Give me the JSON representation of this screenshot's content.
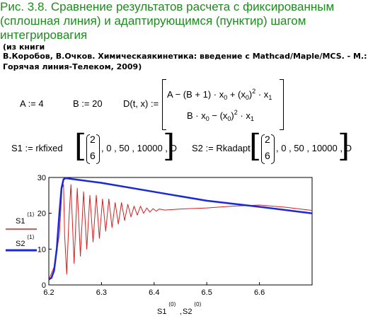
{
  "title": "Рис. 3.8. Сравнение результатов расчета с фиксированным (сплошная линия) и адаптирующимся (пунктир) шагом интегрировагия",
  "source_note": {
    "line1": "(из книги",
    "line2": "В.Коробов, В.Очков. Химическаякинетика: введение с Mathcad/Maple/MCS. - М.:",
    "line3": "Горячая линия-Телеком, 2009)"
  },
  "math": {
    "a_def": "A := 4",
    "b_def": "B := 20",
    "d_lhs": "D(t, x) :=",
    "d_row1_a": "A − (B + 1) · x",
    "d_row1_b": " + (x",
    "d_row1_c": ")",
    "d_row1_d": " · x",
    "d_row2_a": "B · x",
    "d_row2_b": " − (x",
    "d_row2_c": ")",
    "d_row2_d": " · x",
    "sub0": "0",
    "sub1": "1",
    "sup2": "2",
    "s1_lhs": "S1 := rkfixed",
    "s2_lhs": "S2 := Rkadapt",
    "vec_top": "2",
    "vec_bot": "6",
    "args": ", 0 , 50 , 10000 , D"
  },
  "legend": {
    "s1": "S1",
    "s2": "S2",
    "sup": "⟨1⟩"
  },
  "xlabel": {
    "s1": "S1",
    "s2": "S2",
    "sup": "⟨0⟩",
    "comma": ","
  },
  "colors": {
    "s1": "#d42020",
    "s2": "#1a28d8",
    "title": "#1f8a1f"
  },
  "chart_data": {
    "type": "line",
    "xlim": [
      6.2,
      6.7
    ],
    "ylim": [
      0,
      30
    ],
    "x_ticks": [
      "6.2",
      "6.3",
      "6.4",
      "6.5",
      "6.6"
    ],
    "y_ticks": [
      "0",
      "10",
      "20",
      "30"
    ],
    "series": [
      {
        "name": "S1⟨1⟩",
        "description": "rkfixed — damped oscillation",
        "points": [
          [
            6.2,
            1.5
          ],
          [
            6.21,
            5
          ],
          [
            6.22,
            14
          ],
          [
            6.225,
            27
          ],
          [
            6.228,
            28
          ],
          [
            6.23,
            14
          ],
          [
            6.234,
            3
          ],
          [
            6.238,
            18
          ],
          [
            6.242,
            28
          ],
          [
            6.248,
            6
          ],
          [
            6.254,
            27
          ],
          [
            6.26,
            8
          ],
          [
            6.266,
            26
          ],
          [
            6.272,
            10
          ],
          [
            6.278,
            25
          ],
          [
            6.284,
            12
          ],
          [
            6.29,
            25
          ],
          [
            6.296,
            13
          ],
          [
            6.302,
            24
          ],
          [
            6.308,
            15
          ],
          [
            6.314,
            24
          ],
          [
            6.32,
            16
          ],
          [
            6.326,
            23
          ],
          [
            6.332,
            17
          ],
          [
            6.338,
            23
          ],
          [
            6.344,
            18
          ],
          [
            6.35,
            22.5
          ],
          [
            6.356,
            19
          ],
          [
            6.362,
            22
          ],
          [
            6.368,
            19.5
          ],
          [
            6.374,
            22
          ],
          [
            6.38,
            20
          ],
          [
            6.386,
            21.5
          ],
          [
            6.392,
            20.3
          ],
          [
            6.398,
            21.3
          ],
          [
            6.404,
            20.6
          ],
          [
            6.41,
            21.2
          ],
          [
            6.42,
            20.9
          ],
          [
            6.45,
            21.2
          ],
          [
            6.5,
            21.5
          ],
          [
            6.55,
            22
          ],
          [
            6.6,
            22.3
          ],
          [
            6.65,
            21.7
          ],
          [
            6.7,
            20.8
          ]
        ]
      },
      {
        "name": "S2⟨1⟩",
        "description": "Rkadapt — smooth",
        "points": [
          [
            6.2,
            1.5
          ],
          [
            6.205,
            2
          ],
          [
            6.21,
            4
          ],
          [
            6.215,
            10
          ],
          [
            6.22,
            20
          ],
          [
            6.224,
            27
          ],
          [
            6.228,
            29.5
          ],
          [
            6.232,
            29.8
          ],
          [
            6.3,
            28.5
          ],
          [
            6.4,
            26
          ],
          [
            6.5,
            23.5
          ],
          [
            6.6,
            21.8
          ],
          [
            6.7,
            20
          ]
        ]
      }
    ]
  }
}
